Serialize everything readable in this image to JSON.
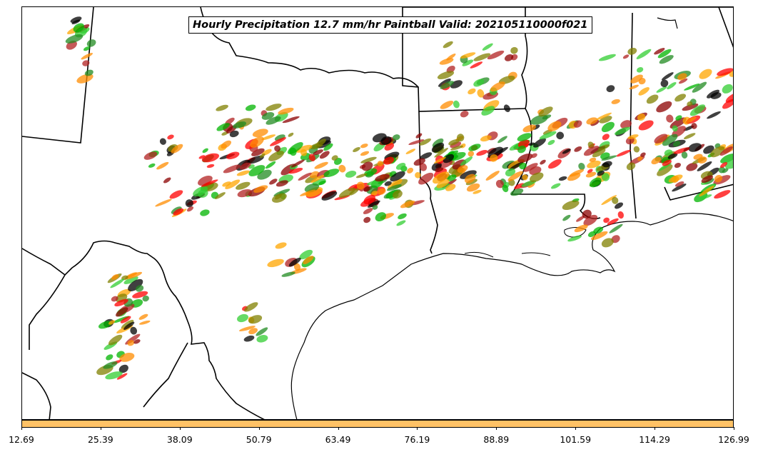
{
  "title": "Hourly Precipitation 12.7 mm/hr Paintball Valid: 202105110000f021",
  "colorbar": {
    "color": "#ffc266",
    "ticks": [
      "12.69",
      "25.39",
      "38.09",
      "50.79",
      "63.49",
      "76.19",
      "88.89",
      "101.59",
      "114.29",
      "126.99"
    ]
  },
  "member_colors": [
    "#00b400",
    "#228b22",
    "#ff0000",
    "#ff8c00",
    "#ffa500",
    "#8b0000",
    "#808000",
    "#b22222",
    "#000000",
    "#32cd32"
  ]
}
